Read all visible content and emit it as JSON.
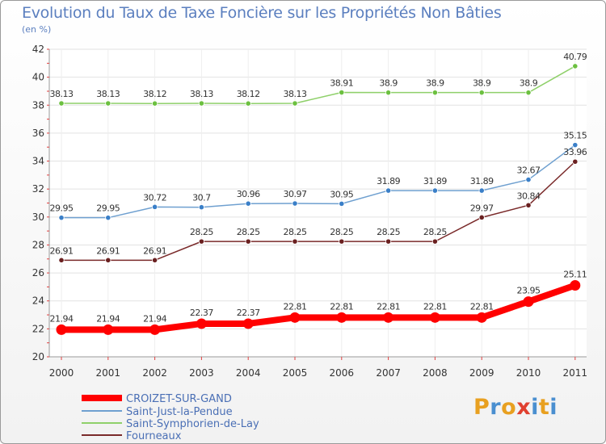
{
  "title": "Evolution du Taux de Taxe Foncière sur les Propriétés Non Bâties",
  "subtitle": "(en %)",
  "logo": {
    "text": "Proxiti",
    "letter_colors": [
      "#e8a020",
      "#4a8fd0",
      "#e8a020",
      "#e04030",
      "#4a8fd0",
      "#e8a020",
      "#4a8fd0"
    ]
  },
  "chart_data": {
    "type": "line",
    "title": "Evolution du Taux de Taxe Foncière sur les Propriétés Non Bâties",
    "ylabel": "(en %)",
    "xlabel": "",
    "ylim": [
      20,
      42
    ],
    "yticks": [
      20,
      22,
      24,
      26,
      28,
      30,
      32,
      34,
      36,
      38,
      40,
      42
    ],
    "grid": true,
    "categories": [
      "2000",
      "2001",
      "2002",
      "2003",
      "2004",
      "2005",
      "2006",
      "2007",
      "2008",
      "2009",
      "2010",
      "2011"
    ],
    "series": [
      {
        "name": "CROIZET-SUR-GAND",
        "color": "#ff0000",
        "marker_color": "#ff0000",
        "values": [
          21.94,
          21.94,
          21.94,
          22.37,
          22.37,
          22.81,
          22.81,
          22.81,
          22.81,
          22.81,
          23.95,
          25.11
        ],
        "labels": [
          "21.94",
          "21.94",
          "21.94",
          "22.37",
          "22.37",
          "22.81",
          "22.81",
          "22.81",
          "22.81",
          "22.81",
          "23.95",
          "25.11"
        ]
      },
      {
        "name": "Saint-Just-la-Pendue",
        "color": "#6fa0d0",
        "marker_color": "#3a7fc8",
        "values": [
          29.95,
          29.95,
          30.72,
          30.7,
          30.96,
          30.97,
          30.95,
          31.89,
          31.89,
          31.89,
          32.67,
          35.15
        ],
        "labels": [
          "29.95",
          "29.95",
          "30.72",
          "30.7",
          "30.96",
          "30.97",
          "30.95",
          "31.89",
          "31.89",
          "31.89",
          "32.67",
          "35.15"
        ]
      },
      {
        "name": "Saint-Symphorien-de-Lay",
        "color": "#8fd06a",
        "marker_color": "#6cc040",
        "values": [
          38.13,
          38.13,
          38.12,
          38.13,
          38.12,
          38.13,
          38.91,
          38.9,
          38.9,
          38.9,
          38.9,
          40.79
        ],
        "labels": [
          "38.13",
          "38.13",
          "38.12",
          "38.13",
          "38.12",
          "38.13",
          "38.91",
          "38.9",
          "38.9",
          "38.9",
          "38.9",
          "40.79"
        ]
      },
      {
        "name": "Fourneaux",
        "color": "#7a2a2a",
        "marker_color": "#6a2020",
        "values": [
          26.91,
          26.91,
          26.91,
          28.25,
          28.25,
          28.25,
          28.25,
          28.25,
          28.25,
          29.97,
          30.84,
          33.96
        ],
        "labels": [
          "26.91",
          "26.91",
          "26.91",
          "28.25",
          "28.25",
          "28.25",
          "28.25",
          "28.25",
          "28.25",
          "29.97",
          "30.84",
          "33.96"
        ]
      }
    ]
  }
}
